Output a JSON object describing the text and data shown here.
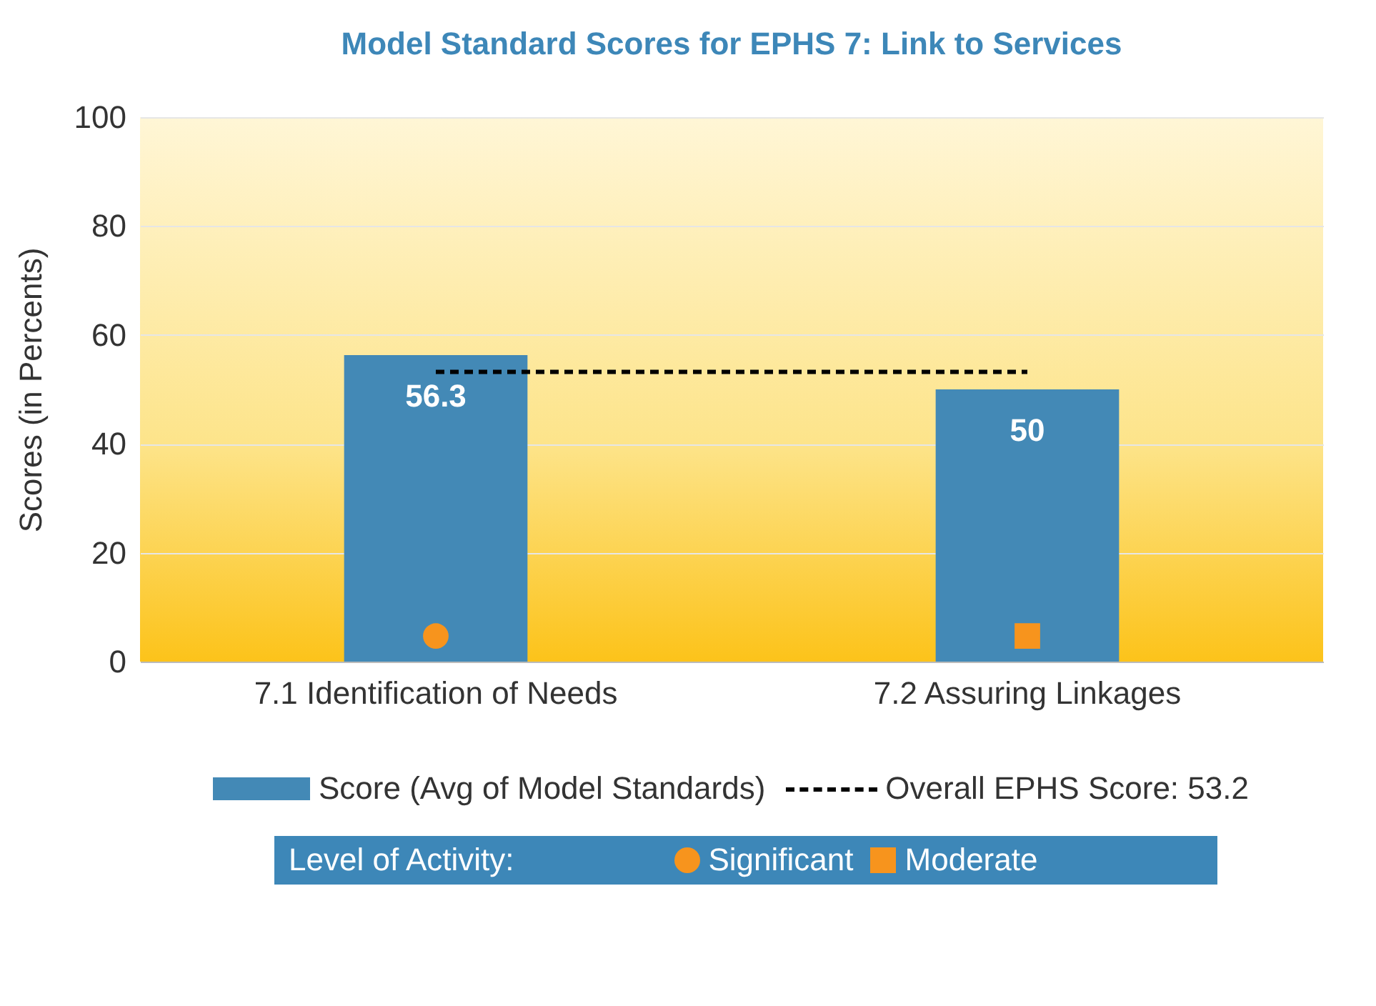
{
  "chart_data": {
    "type": "bar",
    "title": "Model Standard Scores for EPHS 7: Link to Services",
    "ylabel": "Scores (in Percents)",
    "categories": [
      "7.1 Identification of Needs",
      "7.2 Assuring Linkages"
    ],
    "series": [
      {
        "name": "Score (Avg of Model Standards)",
        "color": "#4389b6",
        "values": [
          56.3,
          50
        ],
        "value_labels": [
          "56.3",
          "50"
        ]
      },
      {
        "name": "Overall EPHS Score: 53.2",
        "type": "line",
        "color": "#000000",
        "line_style": "dashed",
        "values": [
          53.2,
          53.2
        ]
      },
      {
        "name": "Significant",
        "type": "scatter",
        "marker": "circle",
        "color": "#f7941d",
        "values": [
          4.7,
          null
        ]
      },
      {
        "name": "Moderate",
        "type": "scatter",
        "marker": "square",
        "color": "#f7941d",
        "values": [
          null,
          4.7
        ]
      }
    ],
    "legend_title": "Level of Activity:",
    "ylim": [
      0,
      100
    ],
    "yticks": [
      0,
      20,
      40,
      60,
      80,
      100
    ],
    "grid": "y",
    "legend": "bottom"
  }
}
